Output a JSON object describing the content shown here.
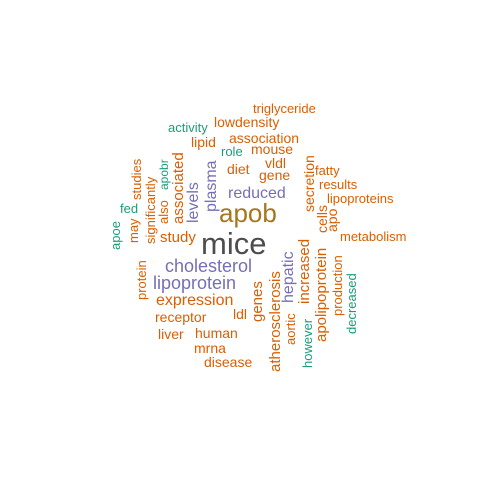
{
  "colors": {
    "gray": "#4d4d4d",
    "gold": "#a6761d",
    "purple": "#7570b3",
    "orange": "#d95f02",
    "green": "#1b9e77"
  },
  "words": [
    {
      "id": "mice",
      "text": "mice",
      "color": "gray"
    },
    {
      "id": "apob",
      "text": "apob",
      "color": "gold"
    },
    {
      "id": "cholesterol",
      "text": "cholesterol",
      "color": "purple"
    },
    {
      "id": "lipoprotein",
      "text": "lipoprotein",
      "color": "purple"
    },
    {
      "id": "reduced",
      "text": "reduced",
      "color": "purple"
    },
    {
      "id": "plasma",
      "text": "plasma",
      "color": "purple"
    },
    {
      "id": "levels",
      "text": "levels",
      "color": "purple"
    },
    {
      "id": "hepatic",
      "text": "hepatic",
      "color": "purple"
    },
    {
      "id": "expression",
      "text": "expression",
      "color": "orange"
    },
    {
      "id": "study",
      "text": "study",
      "color": "orange"
    },
    {
      "id": "associated",
      "text": "associated",
      "color": "orange"
    },
    {
      "id": "atherosclerosis",
      "text": "atherosclerosis",
      "color": "orange"
    },
    {
      "id": "increased",
      "text": "increased",
      "color": "orange"
    },
    {
      "id": "apolipoprotein",
      "text": "apolipoprotein",
      "color": "orange"
    },
    {
      "id": "genes",
      "text": "genes",
      "color": "orange"
    },
    {
      "id": "triglyceride",
      "text": "triglyceride",
      "color": "orange"
    },
    {
      "id": "lowdensity",
      "text": "lowdensity",
      "color": "orange"
    },
    {
      "id": "association",
      "text": "association",
      "color": "orange"
    },
    {
      "id": "lipid",
      "text": "lipid",
      "color": "orange"
    },
    {
      "id": "mouse",
      "text": "mouse",
      "color": "orange"
    },
    {
      "id": "diet",
      "text": "diet",
      "color": "orange"
    },
    {
      "id": "vldl",
      "text": "vldl",
      "color": "orange"
    },
    {
      "id": "gene",
      "text": "gene",
      "color": "orange"
    },
    {
      "id": "secretion",
      "text": "secretion",
      "color": "orange"
    },
    {
      "id": "fatty",
      "text": "fatty",
      "color": "orange"
    },
    {
      "id": "results",
      "text": "results",
      "color": "orange"
    },
    {
      "id": "lipoproteins",
      "text": "lipoproteins",
      "color": "orange"
    },
    {
      "id": "cells",
      "text": "cells",
      "color": "orange"
    },
    {
      "id": "apo",
      "text": "apo",
      "color": "orange"
    },
    {
      "id": "metabolism",
      "text": "metabolism",
      "color": "orange"
    },
    {
      "id": "studies",
      "text": "studies",
      "color": "orange"
    },
    {
      "id": "may",
      "text": "may",
      "color": "orange"
    },
    {
      "id": "significantly",
      "text": "significantly",
      "color": "orange"
    },
    {
      "id": "also",
      "text": "also",
      "color": "orange"
    },
    {
      "id": "protein",
      "text": "protein",
      "color": "orange"
    },
    {
      "id": "receptor",
      "text": "receptor",
      "color": "orange"
    },
    {
      "id": "ldl",
      "text": "ldl",
      "color": "orange"
    },
    {
      "id": "liver",
      "text": "liver",
      "color": "orange"
    },
    {
      "id": "human",
      "text": "human",
      "color": "orange"
    },
    {
      "id": "mrna",
      "text": "mrna",
      "color": "orange"
    },
    {
      "id": "disease",
      "text": "disease",
      "color": "orange"
    },
    {
      "id": "aortic",
      "text": "aortic",
      "color": "orange"
    },
    {
      "id": "production",
      "text": "production",
      "color": "orange"
    },
    {
      "id": "activity",
      "text": "activity",
      "color": "green"
    },
    {
      "id": "role",
      "text": "role",
      "color": "green"
    },
    {
      "id": "apobr",
      "text": "apobr",
      "color": "green"
    },
    {
      "id": "fed",
      "text": "fed",
      "color": "green"
    },
    {
      "id": "apoe",
      "text": "apoe",
      "color": "green"
    },
    {
      "id": "however",
      "text": "however",
      "color": "green"
    },
    {
      "id": "decreased",
      "text": "decreased",
      "color": "green"
    }
  ]
}
